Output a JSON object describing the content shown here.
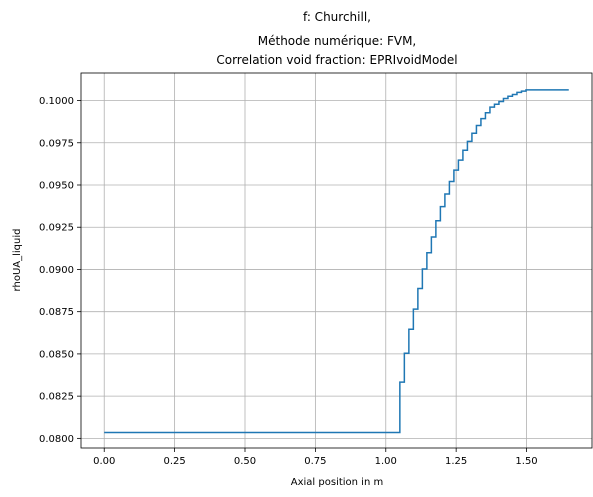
{
  "chart_data": {
    "type": "line",
    "title": [
      "f: Churchill,",
      "Méthode numérique: FVM,",
      "Correlation void fraction: EPRIvoidModel"
    ],
    "xlabel": "Axial position in m",
    "ylabel": "rhoUA_liquid",
    "xlim": [
      -0.0825,
      1.7325
    ],
    "ylim": [
      0.07943,
      0.10163
    ],
    "xticks": [
      0.0,
      0.25,
      0.5,
      0.75,
      1.0,
      1.25,
      1.5
    ],
    "xtick_labels": [
      "0.00",
      "0.25",
      "0.50",
      "0.75",
      "1.00",
      "1.25",
      "1.50"
    ],
    "yticks": [
      0.08,
      0.0825,
      0.085,
      0.0875,
      0.09,
      0.0925,
      0.095,
      0.0975,
      0.1
    ],
    "ytick_labels": [
      "0.0800",
      "0.0825",
      "0.0850",
      "0.0875",
      "0.0900",
      "0.0925",
      "0.0950",
      "0.0975",
      "0.1000"
    ],
    "grid": true,
    "series_color": "#1f77b4",
    "series": [
      {
        "step": "post",
        "x": [
          0.0,
          1.05,
          1.066,
          1.082,
          1.098,
          1.114,
          1.13,
          1.146,
          1.162,
          1.178,
          1.194,
          1.21,
          1.226,
          1.242,
          1.258,
          1.274,
          1.29,
          1.306,
          1.322,
          1.338,
          1.354,
          1.37,
          1.386,
          1.402,
          1.418,
          1.434,
          1.45,
          1.466,
          1.482,
          1.498,
          1.514,
          1.53,
          1.546,
          1.562,
          1.578,
          1.594,
          1.61,
          1.626,
          1.642,
          1.65
        ],
        "y": [
          0.08035,
          0.08333,
          0.08504,
          0.08646,
          0.08765,
          0.08887,
          0.09003,
          0.09099,
          0.09192,
          0.09288,
          0.09372,
          0.09447,
          0.09521,
          0.09588,
          0.09647,
          0.09706,
          0.09758,
          0.09806,
          0.09852,
          0.09893,
          0.09928,
          0.09961,
          0.09978,
          0.09994,
          0.10012,
          0.10025,
          0.10036,
          0.10048,
          0.10056,
          0.10063,
          0.10063,
          0.10063,
          0.10063,
          0.10063,
          0.10063,
          0.10063,
          0.10063,
          0.10063,
          0.10063,
          0.10063
        ]
      }
    ]
  }
}
